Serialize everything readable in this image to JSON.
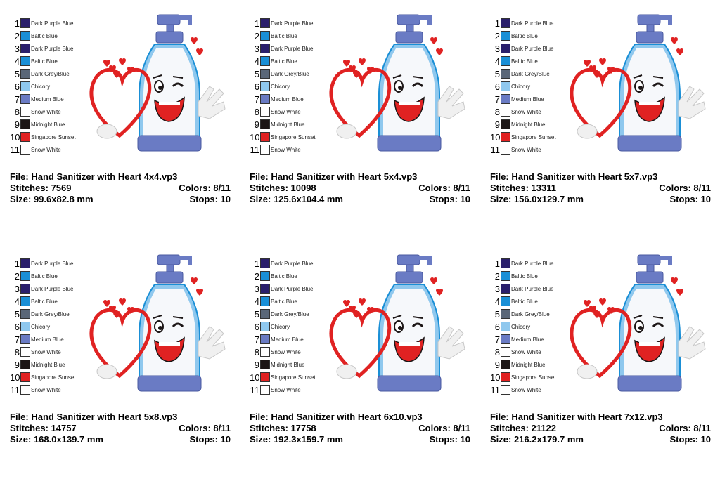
{
  "colors": [
    {
      "num": "1",
      "name": "Dark Purple Blue",
      "hex": "#2a1f6b"
    },
    {
      "num": "2",
      "name": "Baltic Blue",
      "hex": "#1a8fd6"
    },
    {
      "num": "3",
      "name": "Dark Purple Blue",
      "hex": "#2a1f6b"
    },
    {
      "num": "4",
      "name": "Baltic Blue",
      "hex": "#1a8fd6"
    },
    {
      "num": "5",
      "name": "Dark Grey/Blue",
      "hex": "#5a6778"
    },
    {
      "num": "6",
      "name": "Chicory",
      "hex": "#8fc8ee"
    },
    {
      "num": "7",
      "name": "Medium Blue",
      "hex": "#6a7bc4"
    },
    {
      "num": "8",
      "name": "Snow White",
      "hex": "#ffffff"
    },
    {
      "num": "9",
      "name": "Midnight Blue",
      "hex": "#1c1616"
    },
    {
      "num": "10",
      "name": "Singapore Sunset",
      "hex": "#e02222"
    },
    {
      "num": "11",
      "name": "Snow White",
      "hex": "#ffffff"
    }
  ],
  "cards": [
    {
      "file": "File: Hand Sanitizer with Heart 4x4.vp3",
      "stitches": "Stitches: 7569",
      "colors": "Colors: 8/11",
      "size": "Size: 99.6x82.8 mm",
      "stops": "Stops: 10"
    },
    {
      "file": "File: Hand Sanitizer with Heart 5x4.vp3",
      "stitches": "Stitches: 10098",
      "colors": "Colors: 8/11",
      "size": "Size: 125.6x104.4 mm",
      "stops": "Stops: 10"
    },
    {
      "file": "File: Hand Sanitizer with Heart 5x7.vp3",
      "stitches": "Stitches: 13311",
      "colors": "Colors: 8/11",
      "size": "Size: 156.0x129.7 mm",
      "stops": "Stops: 10"
    },
    {
      "file": "File: Hand Sanitizer with Heart 5x8.vp3",
      "stitches": "Stitches: 14757",
      "colors": "Colors: 8/11",
      "size": "Size: 168.0x139.7 mm",
      "stops": "Stops: 10"
    },
    {
      "file": "File: Hand Sanitizer with Heart 6x10.vp3",
      "stitches": "Stitches: 17758",
      "colors": "Colors: 8/11",
      "size": "Size: 192.3x159.7 mm",
      "stops": "Stops: 10"
    },
    {
      "file": "File: Hand Sanitizer with Heart 7x12.vp3",
      "stitches": "Stitches: 21122",
      "colors": "Colors: 8/11",
      "size": "Size: 216.2x179.7 mm",
      "stops": "Stops: 10"
    }
  ]
}
